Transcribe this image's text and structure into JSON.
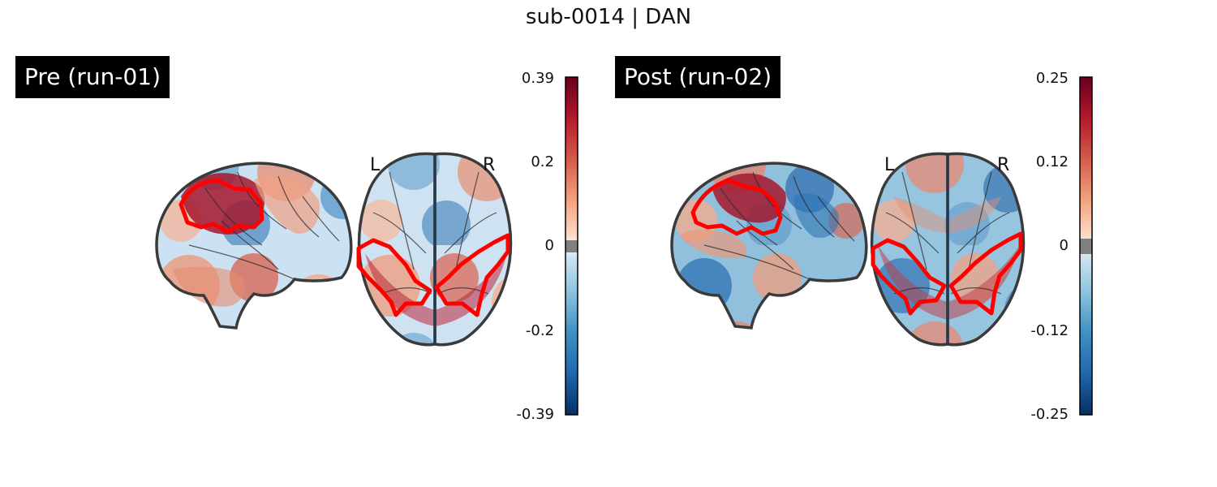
{
  "figure": {
    "title": "sub-0014 | DAN"
  },
  "panels": [
    {
      "label": "Pre (run-01)",
      "hemisphere_labels": {
        "left": "L",
        "right": "R"
      },
      "colorbar": {
        "colormap": "RdBu_r",
        "range": [
          -0.39,
          0.39
        ],
        "ticks": [
          "0.39",
          "0.2",
          "0",
          "-0.2",
          "-0.39"
        ],
        "threshold_color": "#808080"
      }
    },
    {
      "label": "Post (run-02)",
      "hemisphere_labels": {
        "left": "L",
        "right": "R"
      },
      "colorbar": {
        "colormap": "RdBu_r",
        "range": [
          -0.25,
          0.25
        ],
        "ticks": [
          "0.25",
          "0.12",
          "0",
          "-0.12",
          "-0.25"
        ],
        "threshold_color": "#808080"
      }
    }
  ],
  "overlay": {
    "contour_color": "#ff0000"
  }
}
